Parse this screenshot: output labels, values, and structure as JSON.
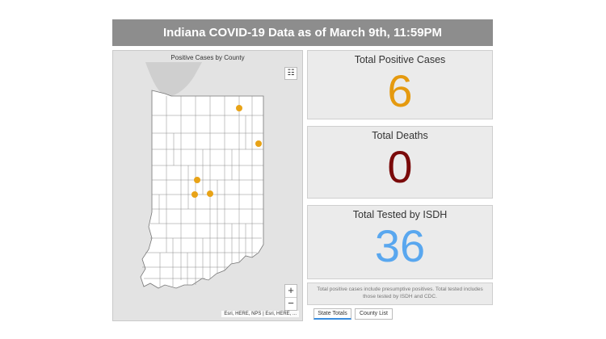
{
  "header": {
    "title": "Indiana COVID-19 Data as of March 9th, 11:59PM"
  },
  "map": {
    "title": "Positive Cases by County",
    "attribution": "Esri, HERE, NPS | Esri, HERE, ...",
    "zoom_in": "+",
    "zoom_out": "−",
    "legend_icon": "list-icon",
    "dot_color": "#e8a317",
    "case_markers": 5
  },
  "stats": {
    "positive": {
      "title": "Total Positive Cases",
      "value": "6",
      "color": "#e59a0f"
    },
    "deaths": {
      "title": "Total Deaths",
      "value": "0",
      "color": "#7a0a0a"
    },
    "tested": {
      "title": "Total Tested by ISDH",
      "value": "36",
      "color": "#59a7ef"
    }
  },
  "note": "Total positive cases include presumptive positives.  Total tested includes those tested by ISDH and CDC.",
  "tabs": [
    {
      "label": "State Totals"
    },
    {
      "label": "County List"
    }
  ]
}
